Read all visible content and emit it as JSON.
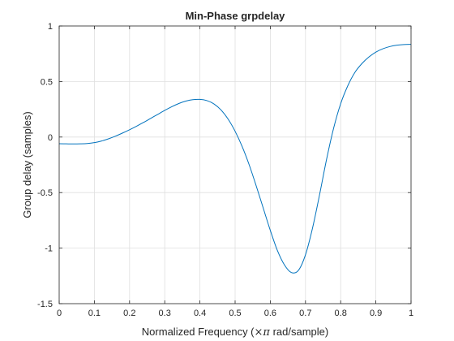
{
  "chart_data": {
    "type": "line",
    "title": "Min-Phase grpdelay",
    "xlabel_prefix": "Normalized Frequency  (",
    "xlabel_symbol": "×π",
    "xlabel_suffix": " rad/sample)",
    "ylabel": "Group delay (samples)",
    "xlim": [
      0,
      1
    ],
    "ylim": [
      -1.5,
      1
    ],
    "xticks": [
      0,
      0.1,
      0.2,
      0.3,
      0.4,
      0.5,
      0.6,
      0.7,
      0.8,
      0.9,
      1
    ],
    "xtick_labels": [
      "0",
      "0.1",
      "0.2",
      "0.3",
      "0.4",
      "0.5",
      "0.6",
      "0.7",
      "0.8",
      "0.9",
      "1"
    ],
    "yticks": [
      -1.5,
      -1,
      -0.5,
      0,
      0.5,
      1
    ],
    "ytick_labels": [
      "-1.5",
      "-1",
      "-0.5",
      "0",
      "0.5",
      "1"
    ],
    "grid": true,
    "line_color": "#0072BD",
    "series": [
      {
        "x": [
          0,
          0.02,
          0.04,
          0.06,
          0.08,
          0.1,
          0.12,
          0.14,
          0.16,
          0.18,
          0.2,
          0.22,
          0.24,
          0.26,
          0.28,
          0.3,
          0.32,
          0.34,
          0.36,
          0.38,
          0.4,
          0.42,
          0.44,
          0.46,
          0.48,
          0.5,
          0.52,
          0.54,
          0.56,
          0.58,
          0.6,
          0.62,
          0.64,
          0.66,
          0.68,
          0.7,
          0.72,
          0.74,
          0.76,
          0.78,
          0.8,
          0.82,
          0.84,
          0.86,
          0.88,
          0.9,
          0.92,
          0.94,
          0.96,
          0.98,
          1
        ],
        "values": [
          -0.06,
          -0.061,
          -0.062,
          -0.061,
          -0.058,
          -0.05,
          -0.036,
          -0.016,
          0.008,
          0.036,
          0.066,
          0.098,
          0.132,
          0.168,
          0.204,
          0.24,
          0.273,
          0.302,
          0.324,
          0.337,
          0.339,
          0.328,
          0.298,
          0.244,
          0.162,
          0.052,
          -0.085,
          -0.25,
          -0.44,
          -0.64,
          -0.84,
          -1.02,
          -1.15,
          -1.22,
          -1.2,
          -1.06,
          -0.82,
          -0.52,
          -0.2,
          0.08,
          0.3,
          0.46,
          0.58,
          0.66,
          0.72,
          0.765,
          0.795,
          0.815,
          0.827,
          0.833,
          0.835
        ]
      }
    ]
  }
}
